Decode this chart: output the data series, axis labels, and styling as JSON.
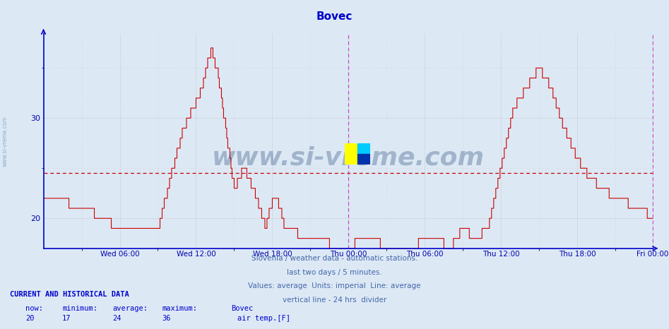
{
  "title": "Bovec",
  "title_color": "#0000cc",
  "bg_color": "#dce9f5",
  "plot_bg_color": "#dce9f5",
  "line_color": "#cc0000",
  "average_line_value": 24.5,
  "average_line_color": "#cc0000",
  "ylim": [
    17.0,
    38.5
  ],
  "yticks": [
    20,
    30
  ],
  "ylabel_color": "#0000aa",
  "xlabel_color": "#0000aa",
  "grid_color": "#aaaaaa",
  "axis_color": "#0000cc",
  "divider_color": "#cc44cc",
  "x_total_points": 576,
  "x_divider_index": 288,
  "xlabels": [
    "Wed 06:00",
    "Wed 12:00",
    "Wed 18:00",
    "Thu 00:00",
    "Thu 06:00",
    "Thu 12:00",
    "Thu 18:00",
    "Fri 00:00"
  ],
  "xtick_positions": [
    72,
    144,
    216,
    288,
    360,
    432,
    504,
    575
  ],
  "watermark_text": "www.si-vreme.com",
  "watermark_color": "#1a3a6a",
  "watermark_alpha": 0.3,
  "subtitle_lines": [
    "Slovenia / weather data - automatic stations.",
    "last two days / 5 minutes.",
    "Values: average  Units: imperial  Line: average",
    "vertical line - 24 hrs  divider"
  ],
  "subtitle_color": "#4466aa",
  "footer_title": "CURRENT AND HISTORICAL DATA",
  "footer_color": "#0000cc",
  "footer_labels": [
    "now:",
    "minimum:",
    "average:",
    "maximum:",
    "Bovec"
  ],
  "footer_values": [
    "20",
    "17",
    "24",
    "36"
  ],
  "legend_label": "air temp.[F]",
  "legend_color": "#cc0000",
  "sidewatermark": "www.si-vreme.com"
}
